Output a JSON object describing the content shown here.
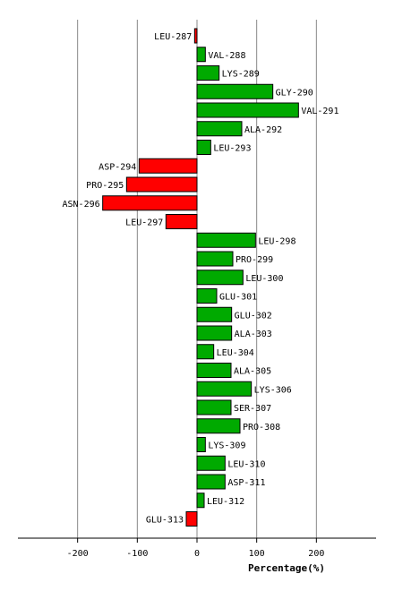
{
  "chart_data": {
    "type": "bar",
    "orientation": "horizontal",
    "xlabel": "Percentage(%)",
    "xlim": [
      -300,
      300
    ],
    "xticks": [
      -200,
      -100,
      0,
      100,
      200
    ],
    "grid": true,
    "colors": {
      "positive": "#00aa00",
      "negative": "#ff0000",
      "grid": "#888888"
    },
    "categories": [
      "LEU-287",
      "VAL-288",
      "LYS-289",
      "GLY-290",
      "VAL-291",
      "ALA-292",
      "LEU-293",
      "ASP-294",
      "PRO-295",
      "ASN-296",
      "LEU-297",
      "LEU-298",
      "PRO-299",
      "LEU-300",
      "GLU-301",
      "GLU-302",
      "ALA-303",
      "LEU-304",
      "ALA-305",
      "LYS-306",
      "SER-307",
      "PRO-308",
      "LYS-309",
      "LEU-310",
      "ASP-311",
      "LEU-312",
      "GLU-313"
    ],
    "values": [
      -4,
      14,
      37,
      127,
      170,
      75,
      23,
      -97,
      -118,
      -158,
      -52,
      98,
      60,
      77,
      33,
      58,
      58,
      28,
      57,
      91,
      57,
      72,
      14,
      47,
      47,
      12,
      -18
    ]
  }
}
